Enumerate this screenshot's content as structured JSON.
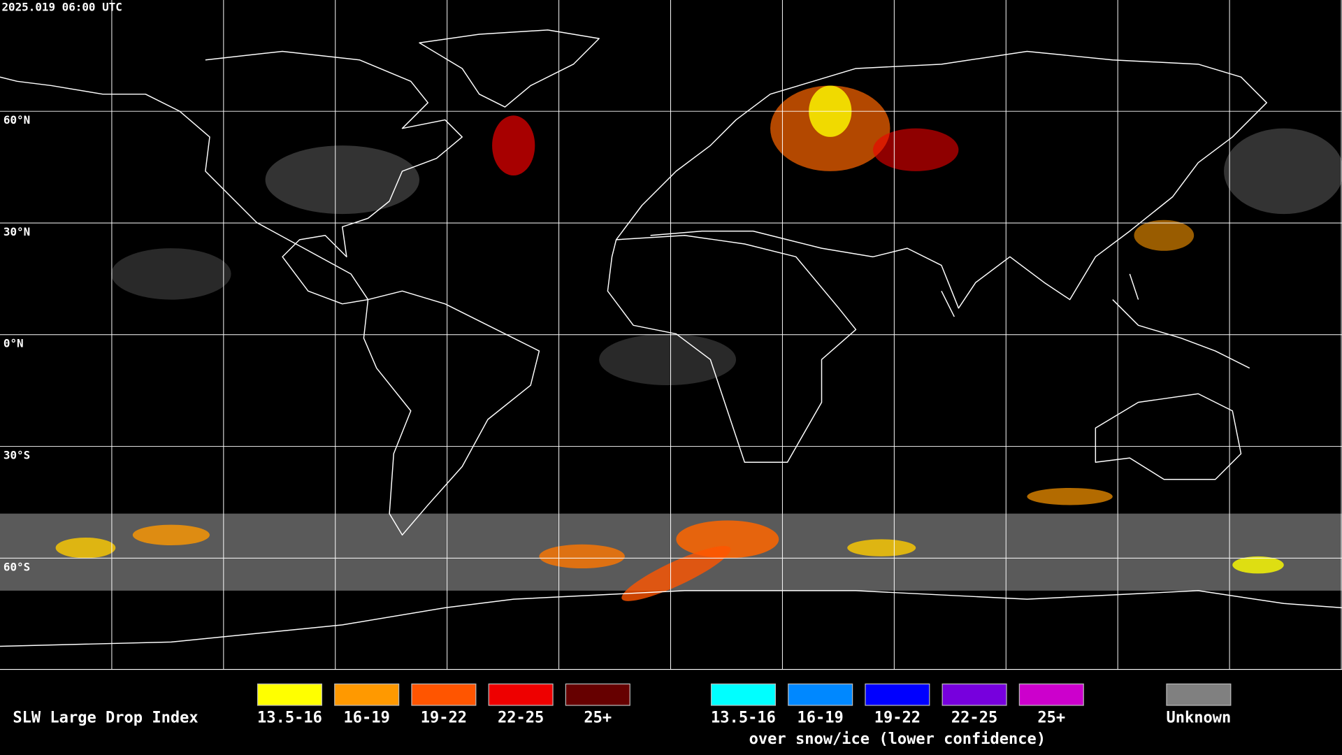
{
  "map": {
    "timestamp": "2025.019 06:00 UTC",
    "latitude_labels": [
      {
        "value": 60,
        "label": "60°N"
      },
      {
        "value": 30,
        "label": "30°N"
      },
      {
        "value": 0,
        "label": "0°N"
      },
      {
        "value": -30,
        "label": "30°S"
      },
      {
        "value": -60,
        "label": "60°S"
      }
    ],
    "grid": true
  },
  "legend": {
    "title": "SLW Large Drop Index",
    "groups": [
      {
        "items": [
          {
            "label": "13.5-16",
            "color": "#ffff00"
          },
          {
            "label": "16-19",
            "color": "#ff9900"
          },
          {
            "label": "19-22",
            "color": "#ff5500"
          },
          {
            "label": "22-25",
            "color": "#ee0000"
          },
          {
            "label": "25+",
            "color": "#660000"
          }
        ]
      },
      {
        "caption": "over snow/ice (lower confidence)",
        "items": [
          {
            "label": "13.5-16",
            "color": "#00ffff"
          },
          {
            "label": "16-19",
            "color": "#0088ff"
          },
          {
            "label": "19-22",
            "color": "#0000ff"
          },
          {
            "label": "22-25",
            "color": "#7700dd"
          },
          {
            "label": "25+",
            "color": "#cc00cc"
          }
        ]
      },
      {
        "items": [
          {
            "label": "Unknown",
            "color": "#808080"
          }
        ]
      }
    ]
  }
}
